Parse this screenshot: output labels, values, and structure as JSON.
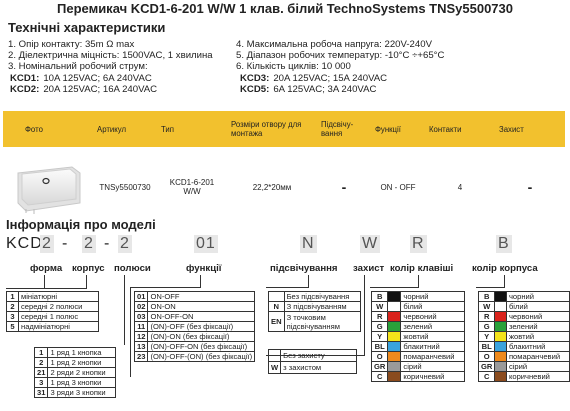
{
  "title": "Перемикач KCD1-6-201 W/W 1 клав. білий TechnoSystems TNSy5500730",
  "specs_heading": "Технічні характеристики",
  "specs_left": [
    "1. Опір контакту: 35m Ω  max",
    "2. Діелектрична міцність:  1500VAC, 1 хвилина",
    "3. Номінальний робочий струм:"
  ],
  "specs_right": [
    "4. Максимальна робоча напруга: 220V-240V",
    "5. Діапазон робочих температур: -10°C ÷+65°C",
    "6. Кількість циклів: 10 000"
  ],
  "currents": [
    {
      "model": "KCD1:",
      "value": "10A 125VAC; 6A 240VAC"
    },
    {
      "model": "KCD2:",
      "value": "20A 125VAC; 16A 240VAC"
    },
    {
      "model": "KCD3:",
      "value": "20A 125VAC; 15A 240VAC"
    },
    {
      "model": "KCD5:",
      "value": "6A 125VAC; 3A 240VAC"
    }
  ],
  "table": {
    "headers": [
      "Фото",
      "Артикул",
      "Тип",
      "Розміри отвору для монтажа",
      "Підсвічу-вання",
      "Функції",
      "Контакти",
      "Захист"
    ],
    "row": [
      "",
      "TNSy5500730",
      "KCD1-6-201 W/W",
      "22,2*20мм",
      "-",
      "ON - OFF",
      "4",
      "-"
    ]
  },
  "model_heading": "Інформація про моделі",
  "code": {
    "prefix": "KCD",
    "p1": "2",
    "sep1": "-",
    "p2": "2",
    "sep2": "-",
    "p3": "2",
    "p4": "01",
    "p5": "N",
    "p6": "W",
    "p7": "R",
    "p8": "B"
  },
  "labels": {
    "forma": "форма",
    "korpus": "корпус",
    "polyusy": "полюси",
    "funktsii": "функції",
    "pidsvich": "підсвічування",
    "zakhyst": "захист",
    "kolir_klav": "колір клавіші",
    "kolir_korp": "колір корпуса"
  },
  "forma_items": [
    {
      "n": "1",
      "t": "мініатюрні"
    },
    {
      "n": "2",
      "t": "середні 2 полюси"
    },
    {
      "n": "3",
      "t": "середні 1 полюс"
    },
    {
      "n": "5",
      "t": "надмініатюрні"
    }
  ],
  "poles_items": [
    {
      "n": "1",
      "t": "1 ряд 1 кнопка"
    },
    {
      "n": "2",
      "t": "1 ряд 2 кнопки"
    },
    {
      "n": "21",
      "t": "2 ряди 2 кнопки"
    },
    {
      "n": "3",
      "t": "1 ряд 3 кнопки"
    },
    {
      "n": "31",
      "t": "3 ряди 3 кнопки"
    }
  ],
  "func_items": [
    {
      "n": "01",
      "t": "ON-OFF"
    },
    {
      "n": "02",
      "t": "ON-ON"
    },
    {
      "n": "03",
      "t": "ON-OFF-ON"
    },
    {
      "n": "11",
      "t": "(ON)-OFF (без фіксації)"
    },
    {
      "n": "12",
      "t": "(ON)-ON (без фіксації)"
    },
    {
      "n": "13",
      "t": "(ON)-OFF-ON (без фіксації)"
    },
    {
      "n": "23",
      "t": "(ON)-OFF-(ON) (без фіксації)"
    }
  ],
  "light_items": [
    {
      "n": "",
      "t": "Без підсвічування"
    },
    {
      "n": "N",
      "t": "З підсвічуванням"
    },
    {
      "n": "EN",
      "t": "З точковим підсвічуванням"
    }
  ],
  "protect_items": [
    {
      "n": "",
      "t": "Без захисту"
    },
    {
      "n": "W",
      "t": "з захистом"
    }
  ],
  "key_colors": [
    {
      "n": "B",
      "t": "чорний",
      "c": "#111111"
    },
    {
      "n": "W",
      "t": "білий",
      "c": "#ffffff"
    },
    {
      "n": "R",
      "t": "червоний",
      "c": "#d9221c"
    },
    {
      "n": "G",
      "t": "зелений",
      "c": "#2aa13a"
    },
    {
      "n": "Y",
      "t": "жовтий",
      "c": "#f3e31a"
    },
    {
      "n": "BL",
      "t": "блакитний",
      "c": "#3aa3dd"
    },
    {
      "n": "O",
      "t": "помаранчевий",
      "c": "#ee8a1d"
    },
    {
      "n": "GR",
      "t": "сірий",
      "c": "#9a9a9a"
    },
    {
      "n": "C",
      "t": "коричневий",
      "c": "#8a4b1e"
    }
  ],
  "body_colors": [
    {
      "n": "B",
      "t": "чорний",
      "c": "#111111"
    },
    {
      "n": "W",
      "t": "білий",
      "c": "#ffffff"
    },
    {
      "n": "R",
      "t": "червоний",
      "c": "#d9221c"
    },
    {
      "n": "G",
      "t": "зелений",
      "c": "#2aa13a"
    },
    {
      "n": "Y",
      "t": "жовтий",
      "c": "#f3e31a"
    },
    {
      "n": "BL",
      "t": "блакитний",
      "c": "#3aa3dd"
    },
    {
      "n": "O",
      "t": "помаранчевий",
      "c": "#ee8a1d"
    },
    {
      "n": "GR",
      "t": "сірий",
      "c": "#9a9a9a"
    },
    {
      "n": "C",
      "t": "коричневий",
      "c": "#8a4b1e"
    }
  ]
}
